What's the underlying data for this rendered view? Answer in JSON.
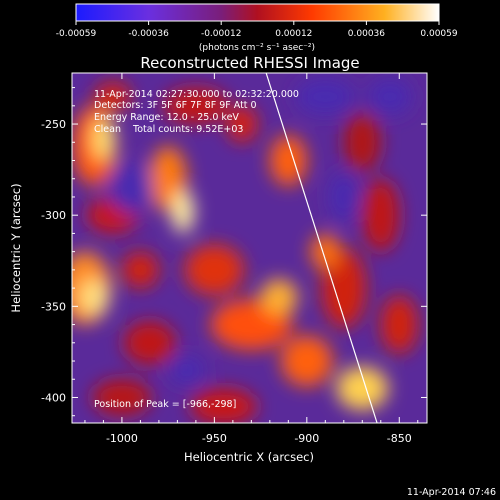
{
  "colorbar": {
    "ticks": [
      "-0.00059",
      "-0.00036",
      "-0.00012",
      "0.00012",
      "0.00036",
      "0.00059"
    ],
    "units": "(photons cm⁻² s⁻¹ asec⁻²)",
    "colors": [
      "#1b1bff",
      "#7a2fd6",
      "#8a1a5c",
      "#d01010",
      "#ff6a00",
      "#ffd040",
      "#ffffff"
    ]
  },
  "chart_data": {
    "type": "heatmap",
    "title": "Reconstructed RHESSI Image",
    "xlabel": "Heliocentric X (arcsec)",
    "ylabel": "Heliocentric Y (arcsec)",
    "xlim": [
      -1027,
      -835
    ],
    "ylim": [
      -414,
      -222
    ],
    "xticks": [
      -1000,
      -950,
      -900,
      -850
    ],
    "xtick_labels": [
      "-1000",
      "-950",
      "-900",
      "-850"
    ],
    "yticks": [
      -250,
      -300,
      -350,
      -400
    ],
    "ytick_labels": [
      "-250",
      "-300",
      "-350",
      "-400"
    ],
    "info_lines": [
      "11-Apr-2014 02:27:30.000 to 02:32:20.000",
      "Detectors: 3F 5F 6F 7F 8F 9F Att 0",
      "Energy Range: 12.0 - 25.0 keV",
      "Clean    Total counts: 9.52E+03"
    ],
    "peak_label": "Position of Peak = [-966,-298]",
    "peak": [
      -966,
      -298
    ],
    "limb_line": [
      [
        -922,
        -222
      ],
      [
        -862,
        -414
      ]
    ],
    "value_range": [
      -0.00059,
      0.00059
    ]
  },
  "timestamp": "11-Apr-2014 07:46"
}
